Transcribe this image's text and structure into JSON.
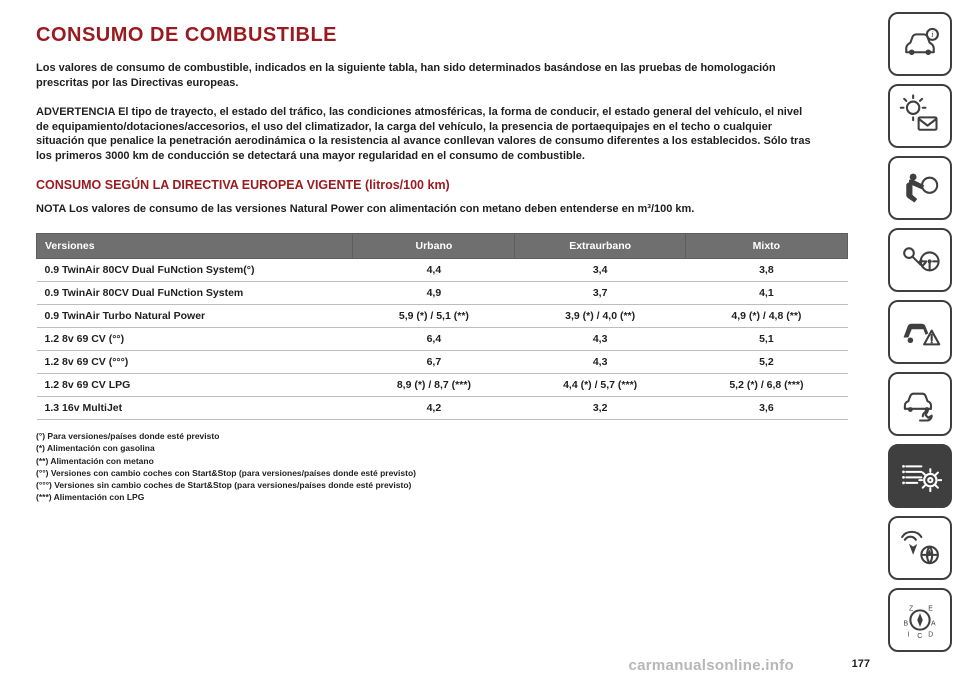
{
  "title": "CONSUMO DE COMBUSTIBLE",
  "para1": "Los valores de consumo de combustible, indicados en la siguiente tabla, han sido determinados basándose en las pruebas de homologación prescritas por las Directivas europeas.",
  "para2": "ADVERTENCIA El tipo de trayecto, el estado del tráfico, las condiciones atmosféricas, la forma de conducir, el estado general del vehículo, el nivel de equipamiento/dotaciones/accesorios, el uso del climatizador, la carga del vehículo, la presencia de portaequipajes en el techo o cualquier situación que penalice la penetración aerodinámica o la resistencia al avance conllevan valores de consumo diferentes a los establecidos. Sólo tras los primeros 3000 km de conducción se detectará una mayor regularidad en el consumo de combustible.",
  "subtitle": "CONSUMO SEGÚN LA DIRECTIVA EUROPEA VIGENTE (litros/100 km)",
  "note": "NOTA Los valores de consumo de las versiones Natural Power con alimentación con metano deben entenderse en m³/100 km.",
  "table": {
    "columns": [
      "Versiones",
      "Urbano",
      "Extraurbano",
      "Mixto"
    ],
    "rows": [
      [
        "0.9 TwinAir 80CV Dual FuNction System(°)",
        "4,4",
        "3,4",
        "3,8"
      ],
      [
        "0.9 TwinAir 80CV Dual FuNction System",
        "4,9",
        "3,7",
        "4,1"
      ],
      [
        "0.9 TwinAir Turbo Natural Power",
        "5,9 (*) / 5,1 (**)",
        "3,9 (*) / 4,0 (**)",
        "4,9 (*) / 4,8 (**)"
      ],
      [
        "1.2 8v 69 CV (°°)",
        "6,4",
        "4,3",
        "5,1"
      ],
      [
        "1.2 8v 69 CV (°°°)",
        "6,7",
        "4,3",
        "5,2"
      ],
      [
        "1.2 8v 69 CV LPG",
        "8,9 (*) / 8,7 (***)",
        "4,4 (*) / 5,7 (***)",
        "5,2 (*) / 6,8 (***)"
      ],
      [
        "1.3 16v MultiJet",
        "4,2",
        "3,2",
        "3,6"
      ]
    ],
    "header_bg": "#6f6f6f",
    "header_fg": "#ffffff",
    "row_border": "#bdbdbd",
    "text_color": "#1f1f1f",
    "col_widths": [
      "39%",
      "20%",
      "21%",
      "20%"
    ],
    "fontsize": 10.5
  },
  "footnotes": [
    "(°) Para versiones/países donde esté previsto",
    "(*) Alimentación con gasolina",
    "(**) Alimentación con metano",
    "(°°) Versiones con cambio coches con Start&Stop (para versiones/países donde esté previsto)",
    "(°°°) Versiones sin cambio coches de Start&Stop (para versiones/países donde esté previsto)",
    "(***) Alimentación con LPG"
  ],
  "pagenum": "177",
  "watermark": "carmanualsonline.info",
  "colors": {
    "heading": "#9a1b1f",
    "text": "#1f1f1f",
    "icon": "#3f3f3f",
    "watermark": "#b7b7b7"
  },
  "sidebar": {
    "activeIndex": 6,
    "items": [
      {
        "name": "car-info-icon"
      },
      {
        "name": "lamp-mail-icon"
      },
      {
        "name": "airbag-icon"
      },
      {
        "name": "key-steering-icon"
      },
      {
        "name": "car-warning-icon"
      },
      {
        "name": "car-wrench-icon"
      },
      {
        "name": "list-gear-icon"
      },
      {
        "name": "radio-nav-icon"
      },
      {
        "name": "compass-icon"
      }
    ]
  }
}
